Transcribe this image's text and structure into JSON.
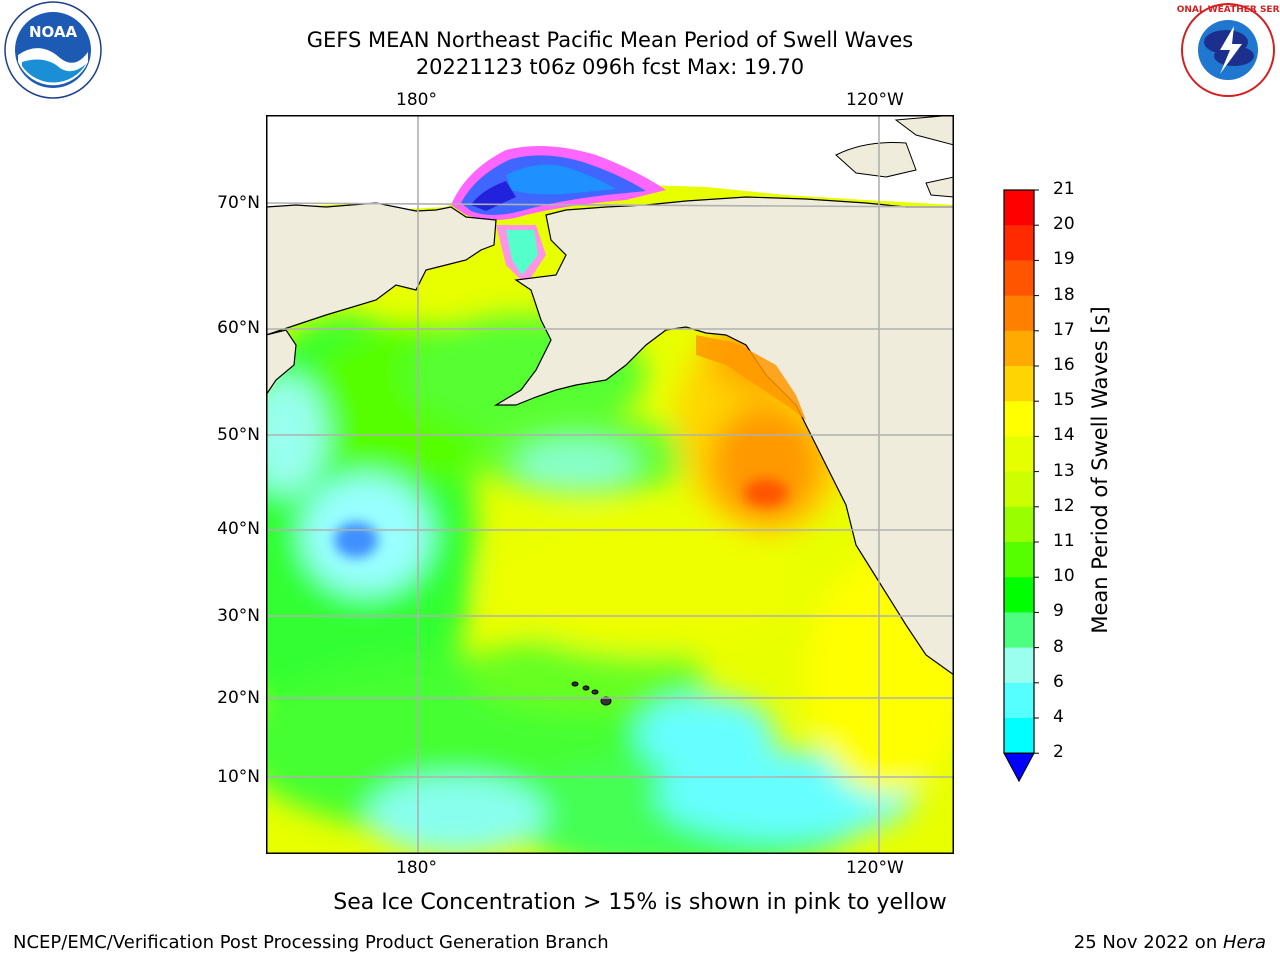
{
  "header": {
    "title_line1": "GEFS MEAN Northeast Pacific Mean Period of Swell Waves",
    "title_line2": "20221123 t06z 096h fcst   Max: 19.70"
  },
  "logos": {
    "left": {
      "text": "NOAA",
      "ring_text": "NATIONAL OCEANIC AND ATMOSPHERIC ADMINISTRATION · U.S. DEPARTMENT OF COMMERCE"
    },
    "right": {
      "ring_text": "NATIONAL WEATHER SERVICE"
    }
  },
  "map": {
    "lon_labels_top": [
      "180°",
      "120°W"
    ],
    "lon_labels_bottom": [
      "180°",
      "120°W"
    ],
    "lat_labels": [
      "70°N",
      "60°N",
      "50°N",
      "40°N",
      "30°N",
      "20°N",
      "10°N"
    ],
    "land_color": "#efecdb",
    "grid_color": "#b0b0b0"
  },
  "colorbar": {
    "title": "Mean Period of Swell Waves [s]",
    "tick_labels": [
      "21",
      "20",
      "19",
      "18",
      "17",
      "16",
      "15",
      "14",
      "13",
      "12",
      "11",
      "10",
      "9",
      "8",
      "6",
      "4",
      "2"
    ],
    "colors_top_to_bottom": [
      "#ff0000",
      "#ff2a00",
      "#ff5500",
      "#ff8000",
      "#ffaa00",
      "#ffd500",
      "#ffff00",
      "#e5ff00",
      "#ccff00",
      "#99ff00",
      "#55ff00",
      "#00ff00",
      "#4dff80",
      "#99ffee",
      "#55ffff",
      "#00ffff",
      "#00ccff",
      "#0066ff"
    ],
    "extend_color": "#0000ff"
  },
  "footer": {
    "note": "Sea Ice Concentration > 15% is shown in pink to yellow",
    "credit_left": "NCEP/EMC/Verification Post Processing Product Generation Branch",
    "credit_right_date": "25 Nov 2022 on ",
    "credit_right_machine": "Hera"
  }
}
